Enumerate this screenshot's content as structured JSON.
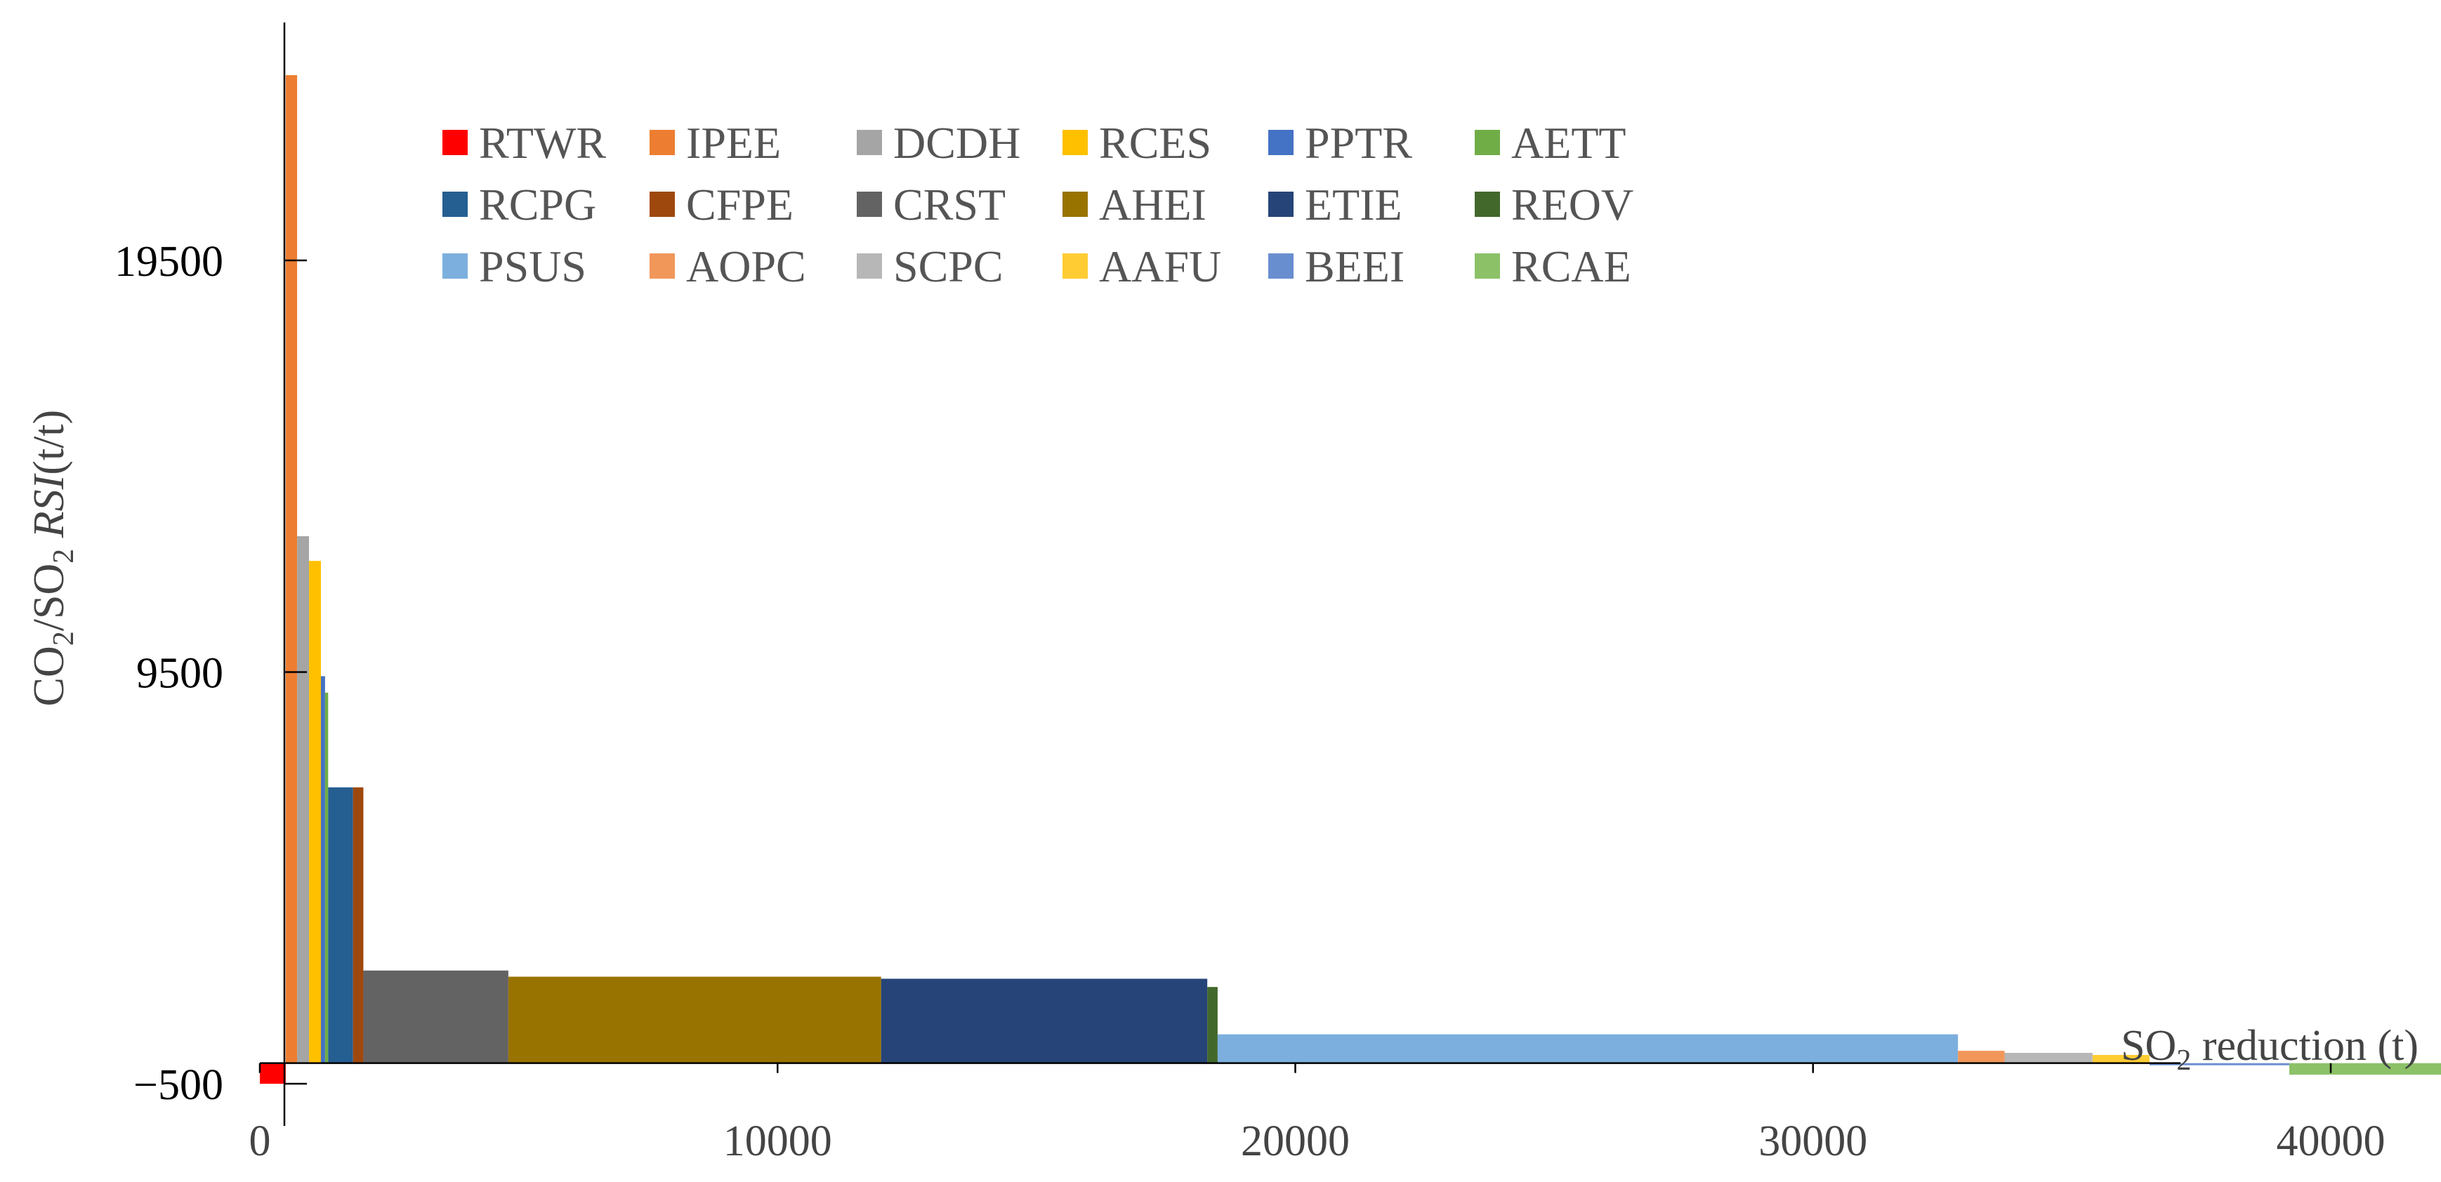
{
  "chart_data": {
    "type": "bar",
    "subtype": "variable-width-step (marginal abatement cost curve)",
    "title": "",
    "xlabel": {
      "main": "SO",
      "sub": "2",
      "rest": " reduction (t)"
    },
    "ylabel": {
      "p1": "CO",
      "s1": "2",
      "p2": "/SO",
      "s2": "2",
      "p3": " ",
      "italic": "RSI",
      "p4": "(t/t)"
    },
    "xlim": [
      0,
      48000
    ],
    "ylim": [
      -500,
      24500
    ],
    "x_ticks": [
      {
        "value": 0,
        "label": "0"
      },
      {
        "value": 10000,
        "label": "10000"
      },
      {
        "value": 20000,
        "label": "20000"
      },
      {
        "value": 30000,
        "label": "30000"
      },
      {
        "value": 40000,
        "label": "40000"
      }
    ],
    "y_ticks": [
      {
        "value": -500,
        "label": "−500"
      },
      {
        "value": 9500,
        "label": "9500"
      },
      {
        "value": 19500,
        "label": "19500"
      }
    ],
    "legend_position": "top",
    "grid": false,
    "series": [
      {
        "name": "RTWR",
        "color": "#FF0000",
        "x_start": 0,
        "x_end": 500,
        "value": -500
      },
      {
        "name": "IPEE",
        "color": "#ED7D31",
        "x_start": 500,
        "x_end": 720,
        "value": 24000
      },
      {
        "name": "DCDH",
        "color": "#A5A5A5",
        "x_start": 720,
        "x_end": 950,
        "value": 12800
      },
      {
        "name": "RCES",
        "color": "#FFC000",
        "x_start": 950,
        "x_end": 1180,
        "value": 12200
      },
      {
        "name": "PPTR",
        "color": "#4472C4",
        "x_start": 1180,
        "x_end": 1260,
        "value": 9400
      },
      {
        "name": "AETT",
        "color": "#70AD47",
        "x_start": 1260,
        "x_end": 1320,
        "value": 9000
      },
      {
        "name": "RCPG",
        "color": "#255E91",
        "x_start": 1320,
        "x_end": 1800,
        "value": 6700
      },
      {
        "name": "CFPE",
        "color": "#9E480E",
        "x_start": 1800,
        "x_end": 2000,
        "value": 6700
      },
      {
        "name": "CRST",
        "color": "#636363",
        "x_start": 2000,
        "x_end": 4800,
        "value": 2250
      },
      {
        "name": "AHEI",
        "color": "#997300",
        "x_start": 4800,
        "x_end": 12000,
        "value": 2100
      },
      {
        "name": "ETIE",
        "color": "#264478",
        "x_start": 12000,
        "x_end": 18300,
        "value": 2050
      },
      {
        "name": "REOV",
        "color": "#43682B",
        "x_start": 18300,
        "x_end": 18500,
        "value": 1850
      },
      {
        "name": "PSUS",
        "color": "#7CAFDD",
        "x_start": 18500,
        "x_end": 32800,
        "value": 700
      },
      {
        "name": "AOPC",
        "color": "#F1975A",
        "x_start": 32800,
        "x_end": 33700,
        "value": 300
      },
      {
        "name": "SCPC",
        "color": "#B7B7B7",
        "x_start": 33700,
        "x_end": 35400,
        "value": 250
      },
      {
        "name": "AAFU",
        "color": "#FFCD33",
        "x_start": 35400,
        "x_end": 36500,
        "value": 200
      },
      {
        "name": "BEEI",
        "color": "#698ED0",
        "x_start": 36500,
        "x_end": 39200,
        "value": -50
      },
      {
        "name": "RCAE",
        "color": "#8CC168",
        "x_start": 39200,
        "x_end": 42500,
        "value": -280
      }
    ]
  }
}
